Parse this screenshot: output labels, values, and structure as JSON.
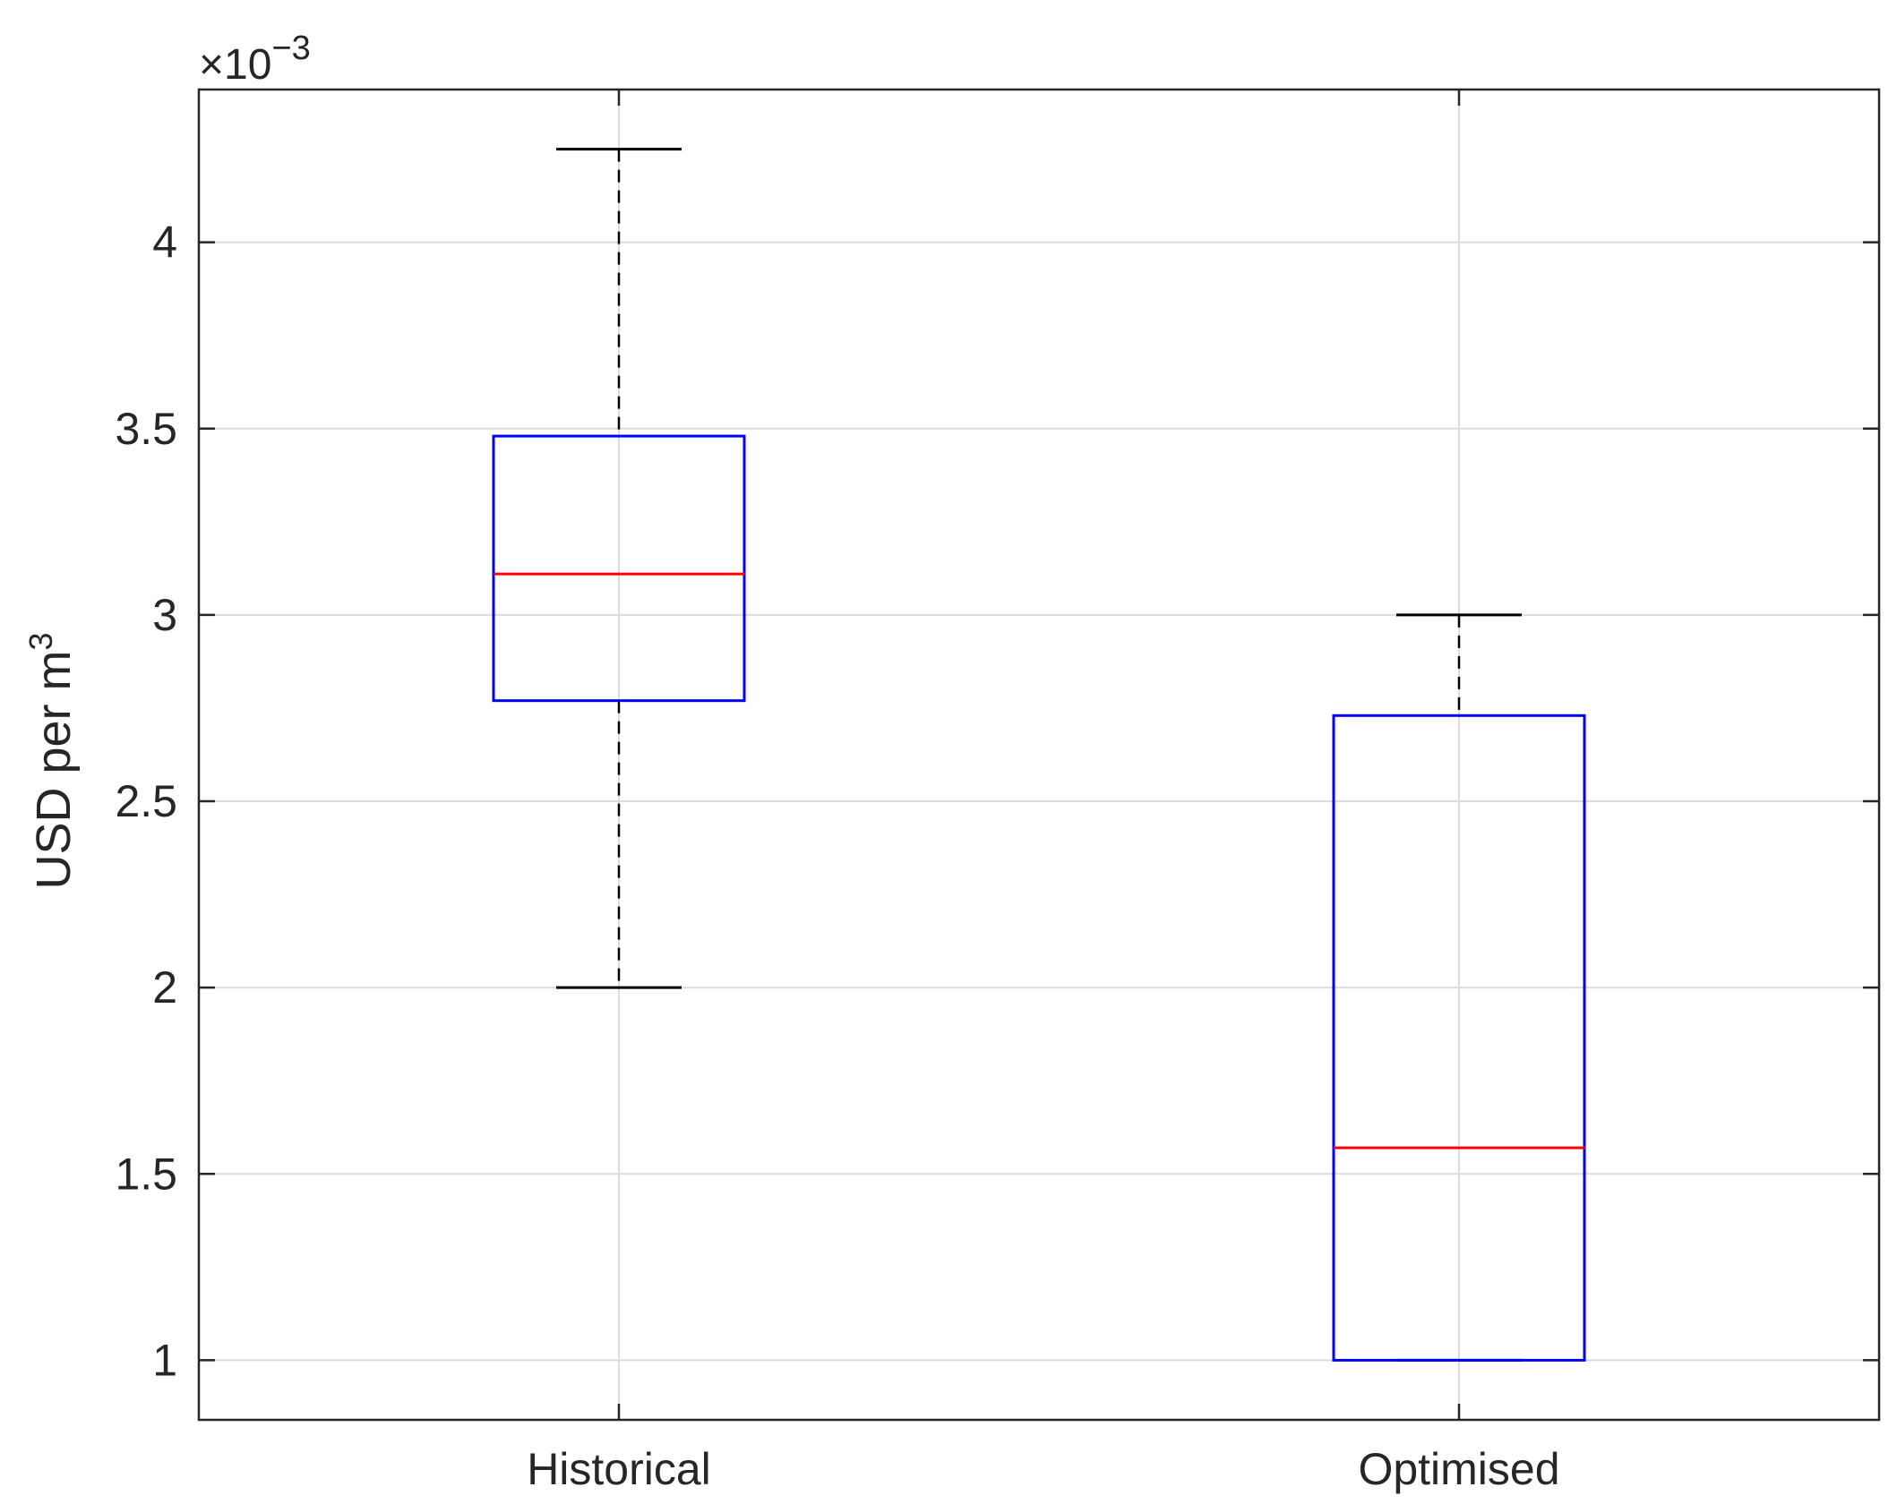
{
  "chart_data": {
    "type": "box",
    "categories": [
      "Historical",
      "Optimised"
    ],
    "boxes": [
      {
        "category": "Historical",
        "lower_whisker": 0.002,
        "q1": 0.00277,
        "median": 0.00311,
        "q3": 0.00348,
        "upper_whisker": 0.00425
      },
      {
        "category": "Optimised",
        "lower_whisker": 0.001,
        "q1": 0.001,
        "median": 0.00157,
        "q3": 0.00273,
        "upper_whisker": 0.003
      }
    ],
    "ylabel": "USD per m³",
    "ylabel_text": "USD per m",
    "ylabel_sup": "3",
    "y_exponent_prefix": "×10",
    "y_exponent_power": "−3",
    "ylim": [
      0.00084,
      0.00441
    ],
    "yticks": [
      0.001,
      0.0015,
      0.002,
      0.0025,
      0.003,
      0.0035,
      0.004
    ],
    "ytick_labels": [
      "1",
      "1.5",
      "2",
      "2.5",
      "3",
      "3.5",
      "4"
    ],
    "grid": true,
    "colors": {
      "box": "#0000ff",
      "median": "#ff0000",
      "whisker": "#000000",
      "grid": "#dcdcdc",
      "axes": "#262626"
    }
  }
}
